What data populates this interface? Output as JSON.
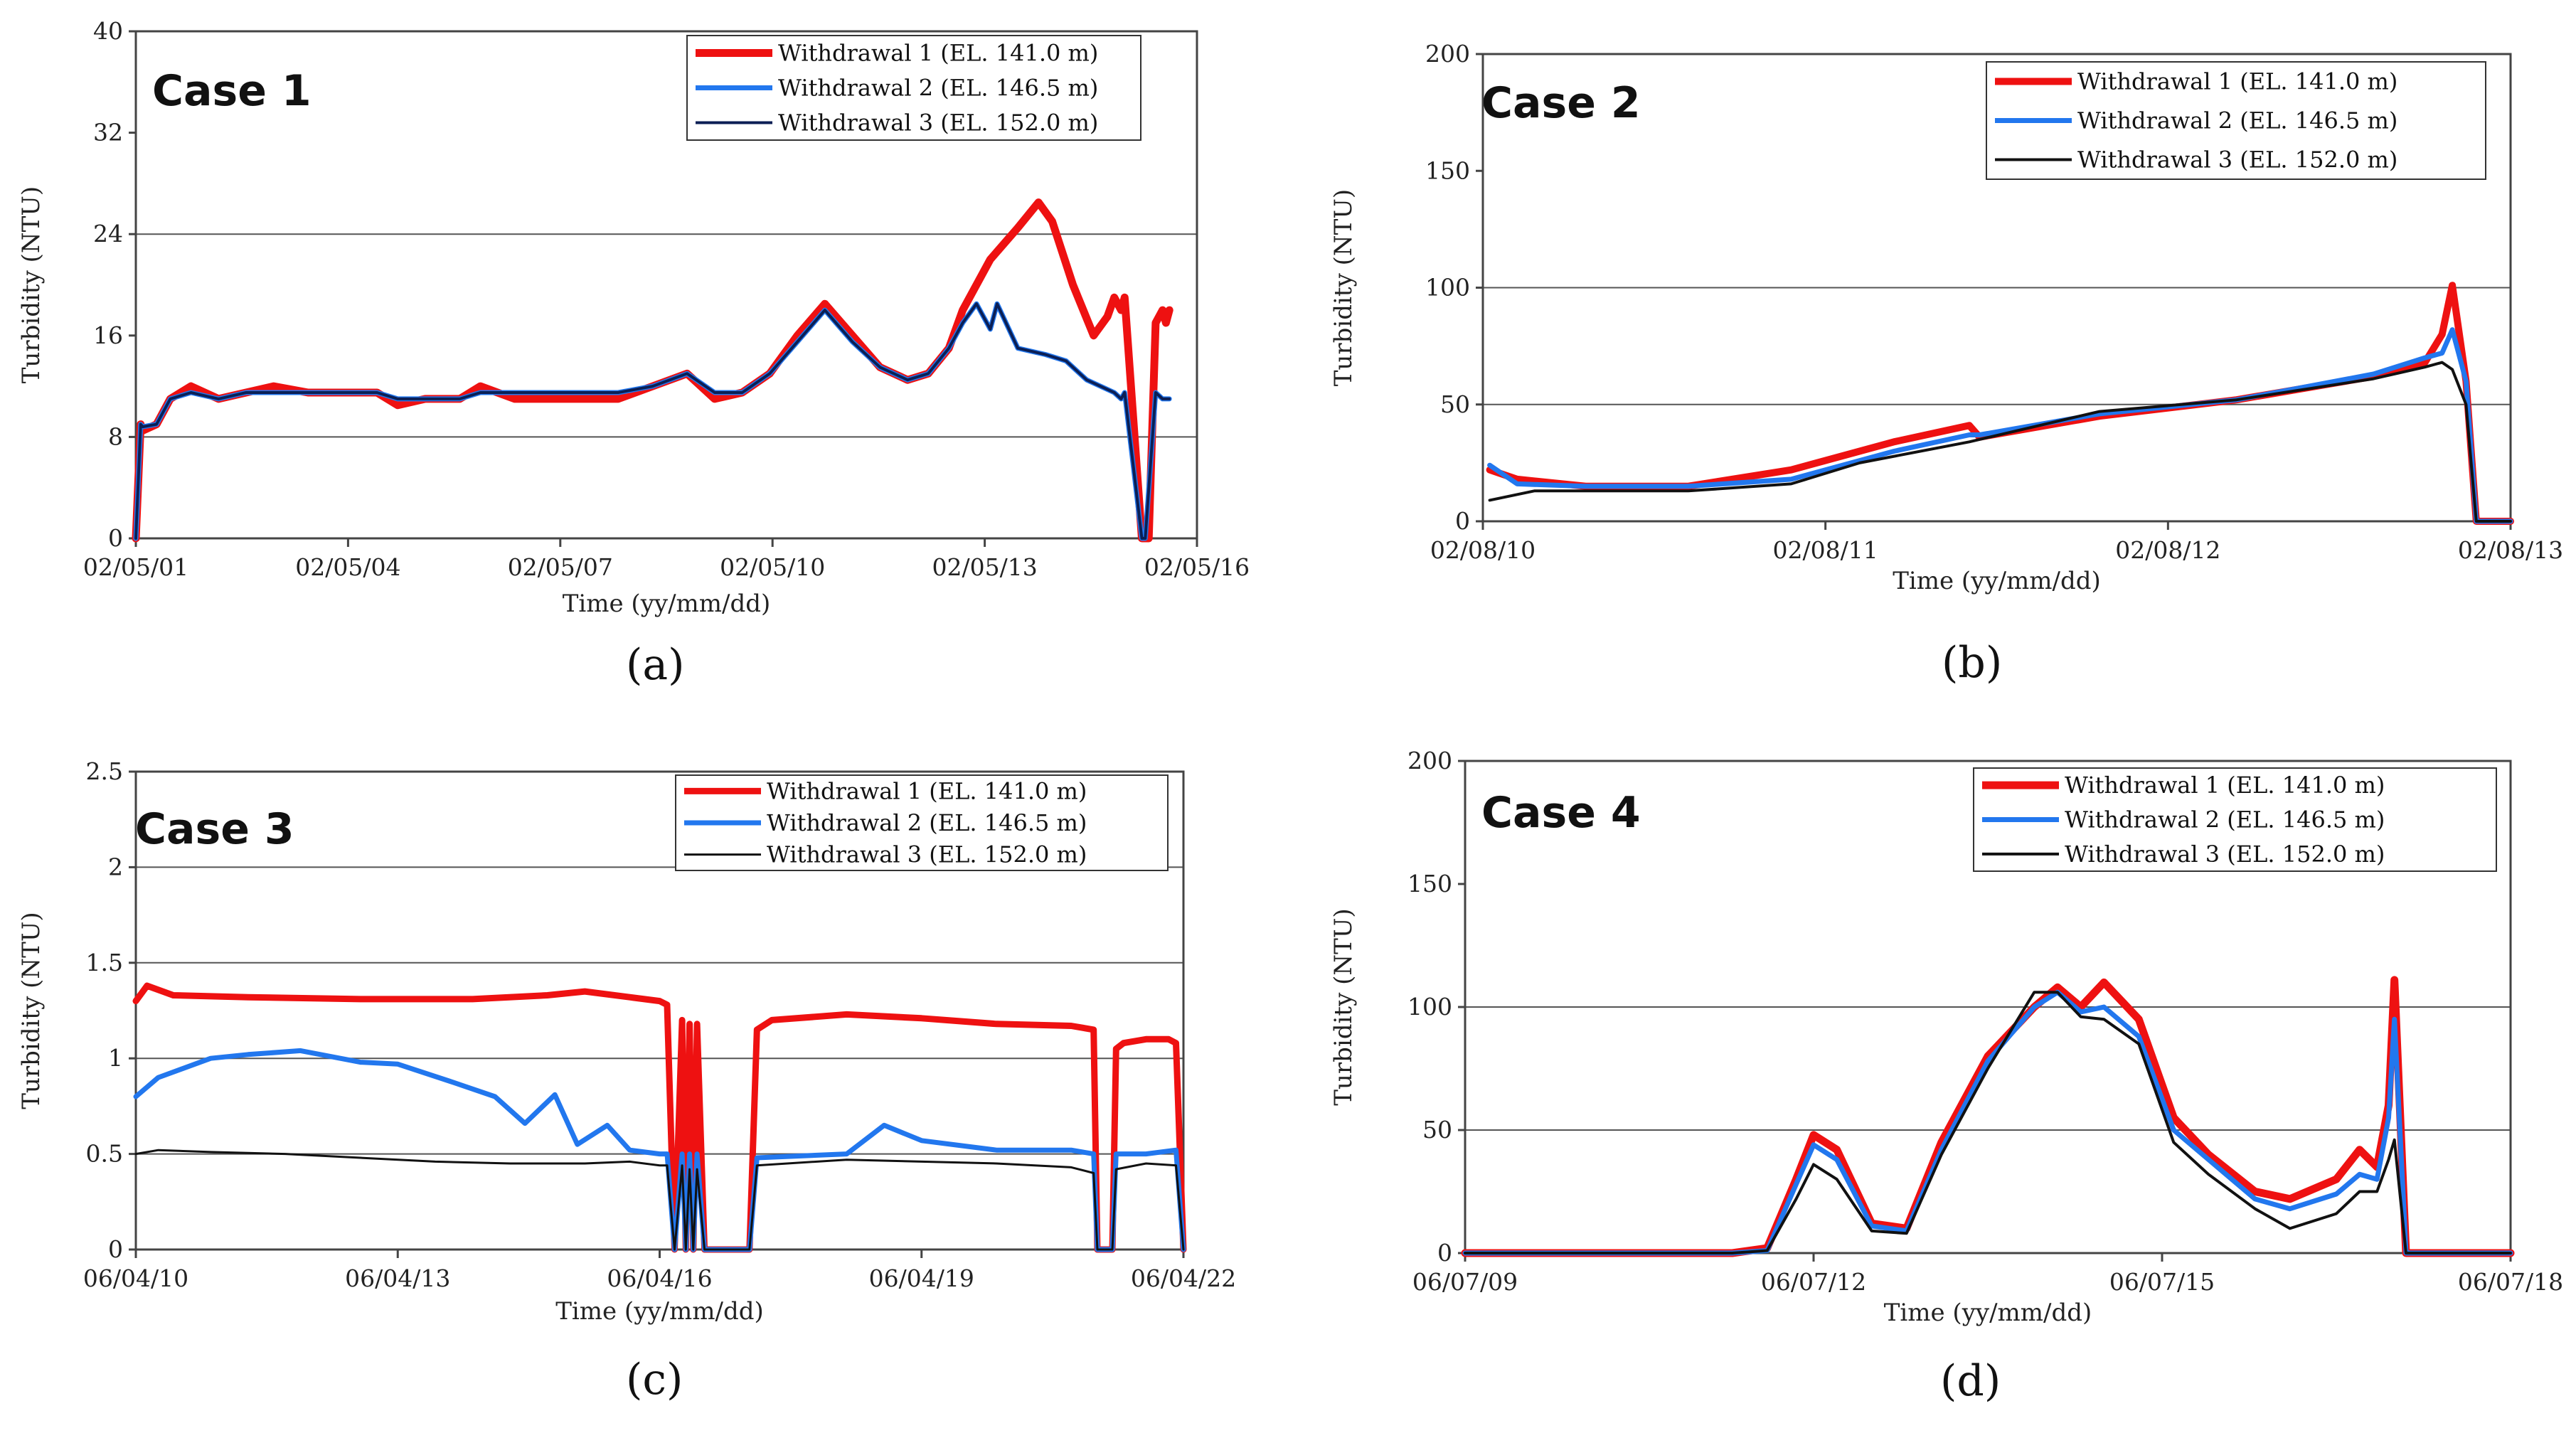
{
  "chart_data": [
    {
      "type": "line",
      "panel_label": "(a)",
      "case_label": "Case 1",
      "xlabel": "Time (yy/mm/dd)",
      "ylabel": "Turbidity (NTU)",
      "xlim": [
        0,
        15.4
      ],
      "ylim": [
        0,
        40
      ],
      "yticks": [
        "0",
        "8",
        "16",
        "24",
        "32",
        "40"
      ],
      "xtick_labels": [
        "02/05/01",
        "02/05/04",
        "02/05/07",
        "02/05/10",
        "02/05/13",
        "02/05/16"
      ],
      "gridlines_y": [
        8,
        24
      ],
      "legend": [
        "Withdrawal 1 (EL. 141.0 m)",
        "Withdrawal 2 (EL. 146.5 m)",
        "Withdrawal 3 (EL. 152.0 m)"
      ],
      "series": [
        {
          "name": "Withdrawal 1 (EL. 141.0 m)",
          "color": "#ee1111",
          "x": [
            0,
            0.07,
            0.1,
            0.3,
            0.5,
            0.8,
            1.2,
            1.6,
            2.0,
            2.5,
            3.0,
            3.5,
            3.8,
            4.2,
            4.7,
            5.0,
            5.5,
            6.0,
            6.5,
            7.0,
            7.5,
            8.0,
            8.4,
            8.8,
            9.2,
            9.6,
            10.0,
            10.4,
            10.8,
            11.2,
            11.5,
            11.8,
            12.0,
            12.4,
            12.8,
            13.1,
            13.3,
            13.6,
            13.9,
            14.1,
            14.2,
            14.3,
            14.35,
            14.6,
            14.65,
            14.7,
            14.8,
            14.9,
            14.95,
            15.0
          ],
          "values": [
            0,
            9,
            8.5,
            9,
            11,
            12,
            11,
            11.5,
            12,
            11.5,
            11.5,
            11.5,
            10.5,
            11,
            11,
            12,
            11,
            11,
            11,
            11,
            12,
            13,
            11,
            11.5,
            13,
            16,
            18.5,
            16,
            13.5,
            12.5,
            13,
            15,
            18,
            22,
            24.5,
            26.5,
            25,
            20,
            16,
            17.5,
            19,
            18,
            19,
            0,
            0,
            0,
            17,
            18,
            17,
            18
          ]
        },
        {
          "name": "Withdrawal 2 (EL. 146.5 m)",
          "color": "#2277ee",
          "x": [
            0,
            0.07,
            0.1,
            0.3,
            0.5,
            0.8,
            1.2,
            1.6,
            2.0,
            2.5,
            3.0,
            3.5,
            3.8,
            4.2,
            4.7,
            5.0,
            5.5,
            6.0,
            6.5,
            7.0,
            7.5,
            8.0,
            8.4,
            8.8,
            9.2,
            9.6,
            10.0,
            10.4,
            10.8,
            11.2,
            11.5,
            11.8,
            12.0,
            12.2,
            12.4,
            12.5,
            12.8,
            13.2,
            13.5,
            13.8,
            14.2,
            14.3,
            14.35,
            14.6,
            14.65,
            14.8,
            14.9,
            15.0
          ],
          "values": [
            0,
            9,
            8.8,
            9,
            11,
            11.5,
            11,
            11.5,
            11.5,
            11.5,
            11.5,
            11.5,
            11,
            11,
            11,
            11.5,
            11.5,
            11.5,
            11.5,
            11.5,
            12,
            13,
            11.5,
            11.5,
            13,
            15.5,
            18,
            15.5,
            13.5,
            12.5,
            13,
            15,
            17,
            18.5,
            16.5,
            18.5,
            15,
            14.5,
            14,
            12.5,
            11.5,
            11,
            11.5,
            0,
            0,
            11.5,
            11,
            11
          ]
        },
        {
          "name": "Withdrawal 3 (EL. 152.0 m)",
          "color": "#0b1f55",
          "x": [
            0,
            0.07,
            0.1,
            0.3,
            0.5,
            0.8,
            1.2,
            1.6,
            2.0,
            2.5,
            3.0,
            3.5,
            3.8,
            4.2,
            4.7,
            5.0,
            5.5,
            6.0,
            6.5,
            7.0,
            7.5,
            8.0,
            8.4,
            8.8,
            9.2,
            9.6,
            10.0,
            10.4,
            10.8,
            11.2,
            11.5,
            11.8,
            12.0,
            12.2,
            12.4,
            12.5,
            12.8,
            13.2,
            13.5,
            13.8,
            14.2,
            14.3,
            14.35,
            14.6,
            14.65,
            14.8,
            14.9,
            15.0
          ],
          "values": [
            0,
            9,
            8.8,
            9,
            11,
            11.5,
            11,
            11.5,
            11.5,
            11.5,
            11.5,
            11.5,
            11,
            11,
            11,
            11.5,
            11.5,
            11.5,
            11.5,
            11.5,
            12,
            13,
            11.5,
            11.5,
            13,
            15.5,
            18,
            15.5,
            13.5,
            12.5,
            13,
            15,
            17,
            18.5,
            16.5,
            18.5,
            15,
            14.5,
            14,
            12.5,
            11.5,
            11,
            11.5,
            0,
            0,
            11.5,
            11,
            11
          ]
        }
      ]
    },
    {
      "type": "line",
      "panel_label": "(b)",
      "case_label": "Case 2",
      "xlabel": "Time (yy/mm/dd)",
      "ylabel": "Turbidity (NTU)",
      "xlim": [
        0,
        3
      ],
      "ylim": [
        0,
        200
      ],
      "yticks": [
        "0",
        "50",
        "100",
        "150",
        "200"
      ],
      "xtick_labels": [
        "02/08/10",
        "02/08/11",
        "02/08/12",
        "02/08/13"
      ],
      "gridlines_y": [
        50,
        100
      ],
      "legend": [
        "Withdrawal 1 (EL. 141.0 m)",
        "Withdrawal 2 (EL. 146.5 m)",
        "Withdrawal 3 (EL. 152.0 m)"
      ],
      "series": [
        {
          "name": "Withdrawal 1 (EL. 141.0 m)",
          "color": "#ee1111",
          "x": [
            0.02,
            0.1,
            0.3,
            0.6,
            0.9,
            1.2,
            1.42,
            1.45,
            1.8,
            2.2,
            2.6,
            2.75,
            2.8,
            2.83,
            2.87,
            2.9,
            2.95,
            3.0
          ],
          "values": [
            22,
            18,
            15,
            15,
            22,
            34,
            41,
            36,
            45,
            52,
            62,
            68,
            80,
            101,
            60,
            0,
            0,
            0
          ]
        },
        {
          "name": "Withdrawal 2 (EL. 146.5 m)",
          "color": "#2277ee",
          "x": [
            0.02,
            0.1,
            0.3,
            0.6,
            0.9,
            1.2,
            1.42,
            1.45,
            1.8,
            2.2,
            2.6,
            2.75,
            2.8,
            2.83,
            2.87,
            2.9,
            2.95,
            3.0
          ],
          "values": [
            24,
            16,
            15,
            15,
            18,
            30,
            37,
            37,
            46,
            52,
            63,
            70,
            72,
            82,
            60,
            0,
            0,
            0
          ]
        },
        {
          "name": "Withdrawal 3 (EL. 152.0 m)",
          "color": "#111111",
          "x": [
            0.02,
            0.15,
            0.3,
            0.6,
            0.9,
            1.1,
            1.42,
            1.8,
            2.2,
            2.6,
            2.75,
            2.8,
            2.83,
            2.87,
            2.9,
            2.95,
            3.0
          ],
          "values": [
            9,
            13,
            13,
            13,
            16,
            25,
            34,
            47,
            52,
            61,
            66,
            68,
            65,
            50,
            0,
            0,
            0
          ]
        }
      ]
    },
    {
      "type": "line",
      "panel_label": "(c)",
      "case_label": "Case 3",
      "xlabel": "Time (yy/mm/dd)",
      "ylabel": "Turbidity (NTU)",
      "xlim": [
        0,
        14
      ],
      "ylim": [
        0,
        2.5
      ],
      "yticks": [
        "0",
        "0.5",
        "1",
        "1.5",
        "2",
        "2.5"
      ],
      "xtick_labels": [
        "06/04/10",
        "06/04/13",
        "06/04/16",
        "06/04/19",
        "06/04/22"
      ],
      "gridlines_y": [
        0.5,
        1,
        1.5,
        2
      ],
      "legend": [
        "Withdrawal 1 (EL. 141.0 m)",
        "Withdrawal 2 (EL. 146.5 m)",
        "Withdrawal 3 (EL. 152.0 m)"
      ],
      "series": [
        {
          "name": "Withdrawal 1 (EL. 141.0 m)",
          "color": "#ee1111",
          "x": [
            0,
            0.15,
            0.5,
            1.5,
            3,
            4.5,
            5.5,
            6,
            6.6,
            7.0,
            7.1,
            7.2,
            7.3,
            7.35,
            7.4,
            7.45,
            7.5,
            7.6,
            8.2,
            8.3,
            8.5,
            9.5,
            10.5,
            11.5,
            12.5,
            12.8,
            12.85,
            13.05,
            13.1,
            13.2,
            13.5,
            13.8,
            13.9,
            14.0
          ],
          "values": [
            1.3,
            1.38,
            1.33,
            1.32,
            1.31,
            1.31,
            1.33,
            1.35,
            1.32,
            1.3,
            1.28,
            0,
            1.2,
            0,
            1.18,
            0,
            1.18,
            0,
            0,
            1.15,
            1.2,
            1.23,
            1.21,
            1.18,
            1.17,
            1.15,
            0,
            0,
            1.05,
            1.08,
            1.1,
            1.1,
            1.08,
            0
          ]
        },
        {
          "name": "Withdrawal 2 (EL. 146.5 m)",
          "color": "#2277ee",
          "x": [
            0,
            0.3,
            1.0,
            1.5,
            2.2,
            3.0,
            3.5,
            4.2,
            4.8,
            5.2,
            5.6,
            5.9,
            6.3,
            6.6,
            7.0,
            7.1,
            7.2,
            7.3,
            7.35,
            7.4,
            7.45,
            7.5,
            7.6,
            8.2,
            8.3,
            9.5,
            10.0,
            10.5,
            11.5,
            12.5,
            12.8,
            12.85,
            13.05,
            13.1,
            13.5,
            13.9,
            14.0
          ],
          "values": [
            0.8,
            0.9,
            1.0,
            1.02,
            1.04,
            0.98,
            0.97,
            0.88,
            0.8,
            0.66,
            0.81,
            0.55,
            0.65,
            0.52,
            0.5,
            0.5,
            0,
            0.5,
            0,
            0.5,
            0,
            0.5,
            0,
            0,
            0.48,
            0.5,
            0.65,
            0.57,
            0.52,
            0.52,
            0.5,
            0,
            0,
            0.5,
            0.5,
            0.52,
            0
          ]
        },
        {
          "name": "Withdrawal 3 (EL. 152.0 m)",
          "color": "#111111",
          "x": [
            0,
            0.3,
            1.0,
            2.0,
            3.0,
            4.0,
            5.0,
            6.0,
            6.6,
            7.0,
            7.1,
            7.2,
            7.3,
            7.35,
            7.4,
            7.45,
            7.5,
            7.6,
            8.2,
            8.3,
            9.5,
            10.5,
            11.5,
            12.5,
            12.8,
            12.85,
            13.05,
            13.1,
            13.5,
            13.9,
            14.0
          ],
          "values": [
            0.5,
            0.52,
            0.51,
            0.5,
            0.48,
            0.46,
            0.45,
            0.45,
            0.46,
            0.44,
            0.44,
            0,
            0.44,
            0,
            0.42,
            0,
            0.42,
            0,
            0,
            0.44,
            0.47,
            0.46,
            0.45,
            0.43,
            0.4,
            0,
            0,
            0.42,
            0.45,
            0.44,
            0
          ]
        }
      ]
    },
    {
      "type": "line",
      "panel_label": "(d)",
      "case_label": "Case 4",
      "xlabel": "Time (yy/mm/dd)",
      "ylabel": "Turbidity (NTU)",
      "xlim": [
        0,
        9
      ],
      "ylim": [
        0,
        200
      ],
      "yticks": [
        "0",
        "50",
        "100",
        "150",
        "200"
      ],
      "xtick_labels": [
        "06/07/09",
        "06/07/12",
        "06/07/15",
        "06/07/18"
      ],
      "gridlines_y": [
        50,
        100
      ],
      "legend": [
        "Withdrawal 1 (EL. 141.0 m)",
        "Withdrawal 2 (EL. 146.5 m)",
        "Withdrawal 3 (EL. 152.0 m)"
      ],
      "series": [
        {
          "name": "Withdrawal 1 (EL. 141.0 m)",
          "color": "#ee1111",
          "x": [
            0,
            2.3,
            2.6,
            2.85,
            3.0,
            3.2,
            3.5,
            3.8,
            4.1,
            4.5,
            4.9,
            5.1,
            5.3,
            5.5,
            5.8,
            6.1,
            6.4,
            6.8,
            7.1,
            7.5,
            7.7,
            7.85,
            7.95,
            8.0,
            8.1,
            9.0
          ],
          "values": [
            0,
            0,
            2,
            30,
            48,
            42,
            12,
            10,
            45,
            80,
            100,
            108,
            100,
            110,
            95,
            55,
            40,
            25,
            22,
            30,
            42,
            35,
            60,
            111,
            0,
            0
          ]
        },
        {
          "name": "Withdrawal 2 (EL. 146.5 m)",
          "color": "#2277ee",
          "x": [
            0,
            2.3,
            2.6,
            2.85,
            3.0,
            3.2,
            3.5,
            3.8,
            4.1,
            4.5,
            4.9,
            5.1,
            5.3,
            5.5,
            5.8,
            6.1,
            6.4,
            6.8,
            7.1,
            7.5,
            7.7,
            7.85,
            7.95,
            8.0,
            8.1,
            9.0
          ],
          "values": [
            0,
            0,
            1,
            28,
            44,
            38,
            11,
            9,
            42,
            78,
            100,
            106,
            98,
            100,
            88,
            50,
            38,
            22,
            18,
            24,
            32,
            30,
            55,
            95,
            0,
            0
          ]
        },
        {
          "name": "Withdrawal 3 (EL. 152.0 m)",
          "color": "#111111",
          "x": [
            0,
            2.3,
            2.6,
            2.85,
            3.0,
            3.2,
            3.5,
            3.8,
            4.1,
            4.5,
            4.9,
            5.1,
            5.3,
            5.5,
            5.8,
            6.1,
            6.4,
            6.8,
            7.1,
            7.5,
            7.7,
            7.85,
            7.95,
            8.0,
            8.1,
            9.0
          ],
          "values": [
            0,
            0,
            1,
            22,
            36,
            30,
            9,
            8,
            40,
            75,
            106,
            106,
            96,
            95,
            85,
            45,
            32,
            18,
            10,
            16,
            25,
            25,
            38,
            46,
            0,
            0
          ]
        }
      ]
    }
  ]
}
